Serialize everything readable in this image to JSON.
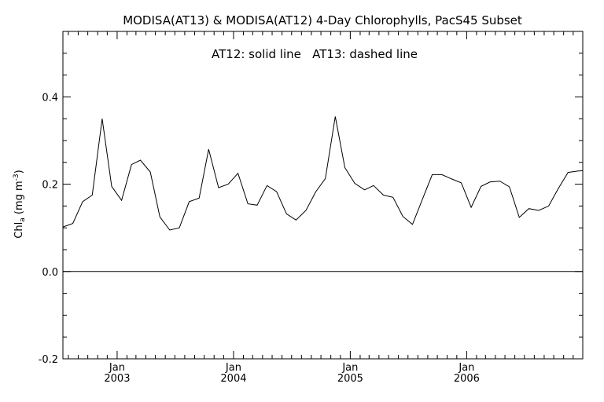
{
  "chart_data": {
    "type": "line",
    "title": "MODISA(AT13) & MODISA(AT12) 4-Day Chlorophylls, PacS45 Subset",
    "annotation": "AT12: solid line   AT13: dashed line",
    "ylabel": "Chl",
    "ylabel_subscript": "a",
    "ylabel_units": "(mg m",
    "ylabel_units_exp": "-3",
    "ylabel_units_close": ")",
    "ylim": [
      -0.2,
      0.55
    ],
    "y_ticks": [
      "-0.2",
      "0.0",
      "0.2",
      "0.4"
    ],
    "x_ticks": [
      {
        "month": "Jan",
        "year": "2003",
        "date": "2003-01-01"
      },
      {
        "month": "Jan",
        "year": "2004",
        "date": "2004-01-01"
      },
      {
        "month": "Jan",
        "year": "2005",
        "date": "2005-01-01"
      },
      {
        "month": "Jan",
        "year": "2006",
        "date": "2006-01-01"
      }
    ],
    "xlim": [
      "2002-07-15",
      "2006-12-31"
    ],
    "zero_line": 0.0,
    "series": [
      {
        "style": "solid",
        "x": [
          "2002-07-15",
          "2002-08-15",
          "2002-09-15",
          "2002-10-15",
          "2002-11-15",
          "2002-12-15",
          "2003-01-15",
          "2003-02-15",
          "2003-03-15",
          "2003-04-15",
          "2003-05-15",
          "2003-06-15",
          "2003-07-15",
          "2003-08-15",
          "2003-09-15",
          "2003-10-15",
          "2003-11-15",
          "2003-12-15",
          "2004-01-15",
          "2004-02-15",
          "2004-03-15",
          "2004-04-15",
          "2004-05-15",
          "2004-06-15",
          "2004-07-15",
          "2004-08-15",
          "2004-09-15",
          "2004-10-15",
          "2004-11-15",
          "2004-12-15",
          "2005-01-15",
          "2005-02-15",
          "2005-03-15",
          "2005-04-15",
          "2005-05-15",
          "2005-06-15",
          "2005-07-15",
          "2005-08-15",
          "2005-09-15",
          "2005-10-15",
          "2005-11-15",
          "2005-12-15",
          "2006-01-15",
          "2006-02-15",
          "2006-03-15",
          "2006-04-15",
          "2006-05-15",
          "2006-06-15",
          "2006-07-15",
          "2006-08-15",
          "2006-09-15",
          "2006-10-15",
          "2006-11-15",
          "2006-12-15",
          "2006-12-31"
        ],
        "values": [
          0.102,
          0.11,
          0.16,
          0.175,
          0.35,
          0.195,
          0.163,
          0.245,
          0.255,
          0.228,
          0.125,
          0.095,
          0.1,
          0.16,
          0.168,
          0.28,
          0.192,
          0.2,
          0.225,
          0.155,
          0.152,
          0.197,
          0.183,
          0.132,
          0.118,
          0.14,
          0.183,
          0.213,
          0.355,
          0.238,
          0.202,
          0.187,
          0.197,
          0.175,
          0.17,
          0.126,
          0.108,
          0.165,
          0.222,
          0.222,
          0.212,
          0.203,
          0.147,
          0.195,
          0.205,
          0.207,
          0.194,
          0.124,
          0.144,
          0.14,
          0.15,
          0.19,
          0.227,
          0.23,
          0.231
        ]
      }
    ]
  }
}
